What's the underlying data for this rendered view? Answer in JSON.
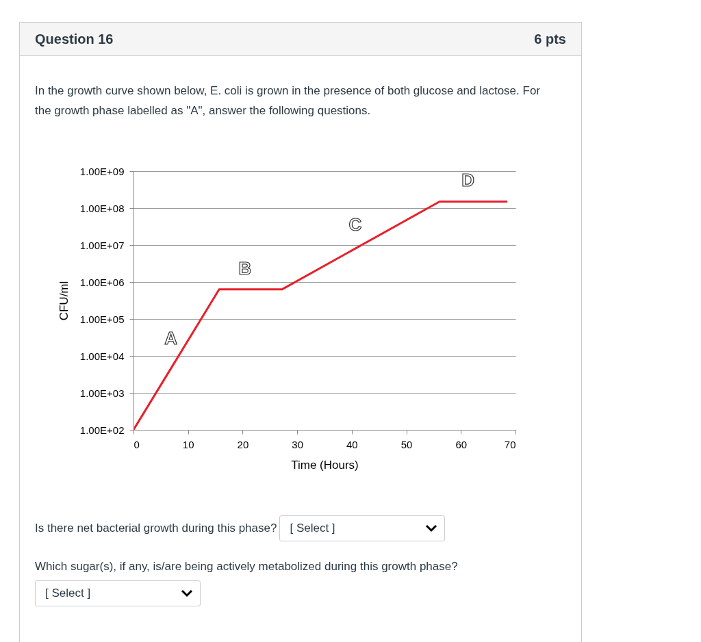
{
  "chart_data": {
    "type": "line",
    "title": "Question 16",
    "subtitle": "In the growth curve shown below, E. coli is grown in the presence of both glucose and lactose. For the growth phase labelled as \"A\", answer the following questions.",
    "xlabel": "Time (Hours)",
    "ylabel": "CFU/ml",
    "x": [
      0,
      15.7,
      27.2,
      56.1,
      68.5
    ],
    "series": [
      {
        "color": "#e8202a",
        "values": [
          100,
          630000,
          630000,
          150000000,
          150000000
        ]
      }
    ],
    "xlim": [
      0,
      70
    ],
    "xticks": [
      0,
      10,
      20,
      30,
      40,
      50,
      60,
      70
    ],
    "ylim": [
      100,
      1000000000
    ],
    "yticks": [
      {
        "value": 100,
        "label": "1.00E+02"
      },
      {
        "value": 1000,
        "label": "1.00E+03"
      },
      {
        "value": 10000,
        "label": "1.00E+04"
      },
      {
        "value": 100000,
        "label": "1.00E+05"
      },
      {
        "value": 1000000,
        "label": "1.00E+06"
      },
      {
        "value": 10000000,
        "label": "1.00E+07"
      },
      {
        "value": 100000000,
        "label": "1.00E+08"
      },
      {
        "value": 1000000000,
        "label": "1.00E+09"
      }
    ],
    "log": "y",
    "grid": "y",
    "annotations": [
      "6 pts",
      "Is there net bacterial growth during this phase?",
      "[ Select ]",
      "Which sugar(s), if any, is/are being actively metabolized during this growth phase?",
      "[ Select ]",
      "A",
      "B",
      "C",
      "D"
    ]
  }
}
